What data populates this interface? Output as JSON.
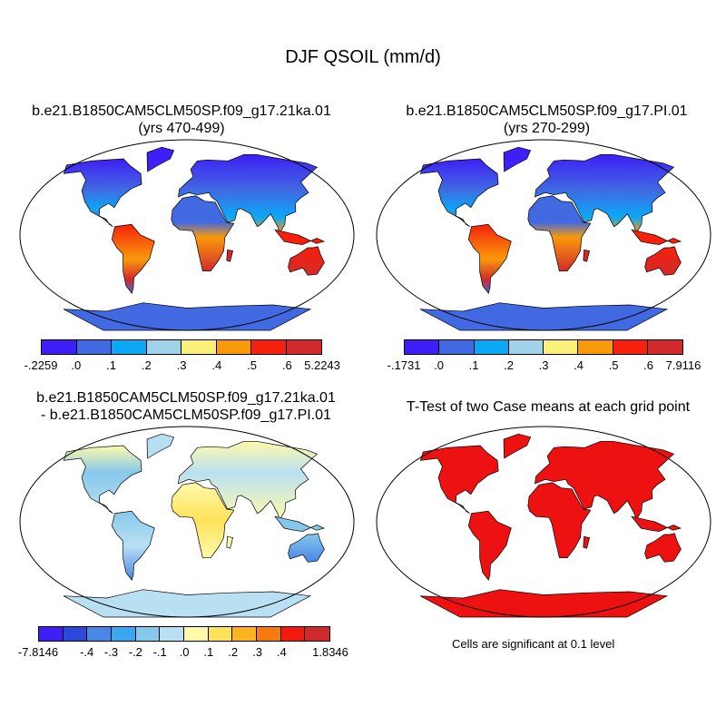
{
  "figure": {
    "title": "DJF QSOIL (mm/d)"
  },
  "panels": [
    {
      "title_line1": "b.e21.B1850CAM5CLM50SP.f09_g17.21ka.01",
      "title_line2": "(yrs 470-499)",
      "palette": "climatology",
      "colorbar": {
        "colors": [
          "#3e1ff5",
          "#4169e1",
          "#0aa8f7",
          "#a0d2ea",
          "#fbf079",
          "#f99a0b",
          "#f7200c",
          "#d22a2a"
        ],
        "labels": [
          "-.2259",
          ".0",
          ".1",
          ".2",
          ".3",
          ".4",
          ".5",
          ".6",
          "5.2243"
        ]
      }
    },
    {
      "title_line1": "b.e21.B1850CAM5CLM50SP.f09_g17.PI.01",
      "title_line2": "(yrs 270-299)",
      "palette": "climatology",
      "colorbar": {
        "colors": [
          "#3e1ff5",
          "#4169e1",
          "#0aa8f7",
          "#a0d2ea",
          "#fbf079",
          "#f99a0b",
          "#f7200c",
          "#d22a2a"
        ],
        "labels": [
          "-.1731",
          ".0",
          ".1",
          ".2",
          ".3",
          ".4",
          ".5",
          ".6",
          "7.9116"
        ]
      }
    },
    {
      "title_line1": "b.e21.B1850CAM5CLM50SP.f09_g17.21ka.01",
      "title_line2": "- b.e21.B1850CAM5CLM50SP.f09_g17.PI.01",
      "palette": "difference",
      "colorbar": {
        "colors": [
          "#3e1ff5",
          "#2c49d9",
          "#4a86e6",
          "#3aa8f0",
          "#86c8ec",
          "#b9e0f2",
          "#fffaaa",
          "#fde25a",
          "#fbb420",
          "#f87a0e",
          "#f21a0c",
          "#cf2a2a"
        ],
        "labels": [
          "-7.8146",
          "",
          "-.4",
          "-.3",
          "-.2",
          "-.1",
          ".0",
          ".1",
          ".2",
          ".3",
          ".4",
          "",
          "1.8346"
        ]
      }
    },
    {
      "title_line1": "T-Test of two Case means at each grid point",
      "title_line2": "",
      "palette": "significance",
      "note": "Cells are significant at 0.1 level"
    }
  ]
}
